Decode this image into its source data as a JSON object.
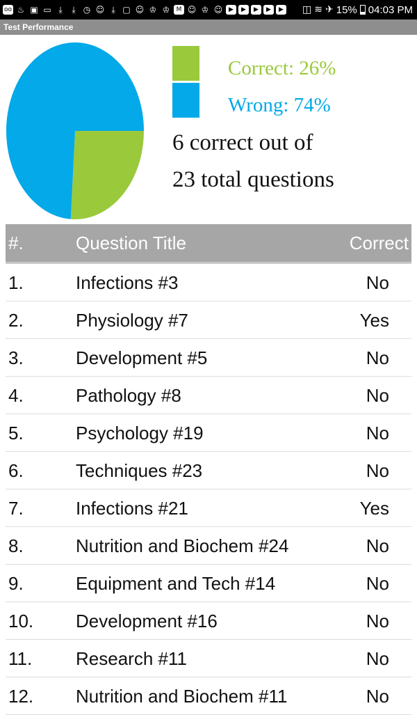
{
  "status_bar": {
    "notification_icons": [
      "voicemail-icon",
      "fire-icon",
      "app-icon",
      "image-icon",
      "download-icon",
      "download-icon",
      "clock-icon",
      "face-icon",
      "download-icon",
      "bag-icon",
      "face-icon",
      "robot-icon",
      "robot-icon",
      "gmail-icon",
      "face-icon",
      "robot-icon",
      "face-icon",
      "youtube-icon",
      "youtube-icon",
      "youtube-icon",
      "youtube-icon",
      "youtube-icon"
    ],
    "battery_percent": "15%",
    "time": "04:03 PM"
  },
  "app": {
    "title": "Test Performance"
  },
  "chart_data": {
    "type": "pie",
    "slices": [
      {
        "label": "Correct",
        "value": 26,
        "color": "#9ac93c"
      },
      {
        "label": "Wrong",
        "value": 74,
        "color": "#03a9e8"
      }
    ]
  },
  "legend": {
    "correct_text": "Correct: 26%",
    "wrong_text": "Wrong: 74%",
    "correct_color": "#9ac93c",
    "wrong_color": "#03a9e8"
  },
  "summary": {
    "line1": "6 correct out of",
    "line2": "23 total questions"
  },
  "table": {
    "headers": {
      "num": "#.",
      "title": "Question Title",
      "correct": "Correct"
    },
    "rows": [
      {
        "num": "1.",
        "title": "Infections #3",
        "correct": "No"
      },
      {
        "num": "2.",
        "title": "Physiology #7",
        "correct": "Yes"
      },
      {
        "num": "3.",
        "title": "Development #5",
        "correct": "No"
      },
      {
        "num": "4.",
        "title": "Pathology #8",
        "correct": "No"
      },
      {
        "num": "5.",
        "title": "Psychology #19",
        "correct": "No"
      },
      {
        "num": "6.",
        "title": "Techniques #23",
        "correct": "No"
      },
      {
        "num": "7.",
        "title": "Infections #21",
        "correct": "Yes"
      },
      {
        "num": "8.",
        "title": "Nutrition and Biochem #24",
        "correct": "No"
      },
      {
        "num": "9.",
        "title": "Equipment and Tech #14",
        "correct": "No"
      },
      {
        "num": "10.",
        "title": "Development #16",
        "correct": "No"
      },
      {
        "num": "11.",
        "title": "Research #11",
        "correct": "No"
      },
      {
        "num": "12.",
        "title": "Nutrition and Biochem #11",
        "correct": "No"
      }
    ]
  }
}
